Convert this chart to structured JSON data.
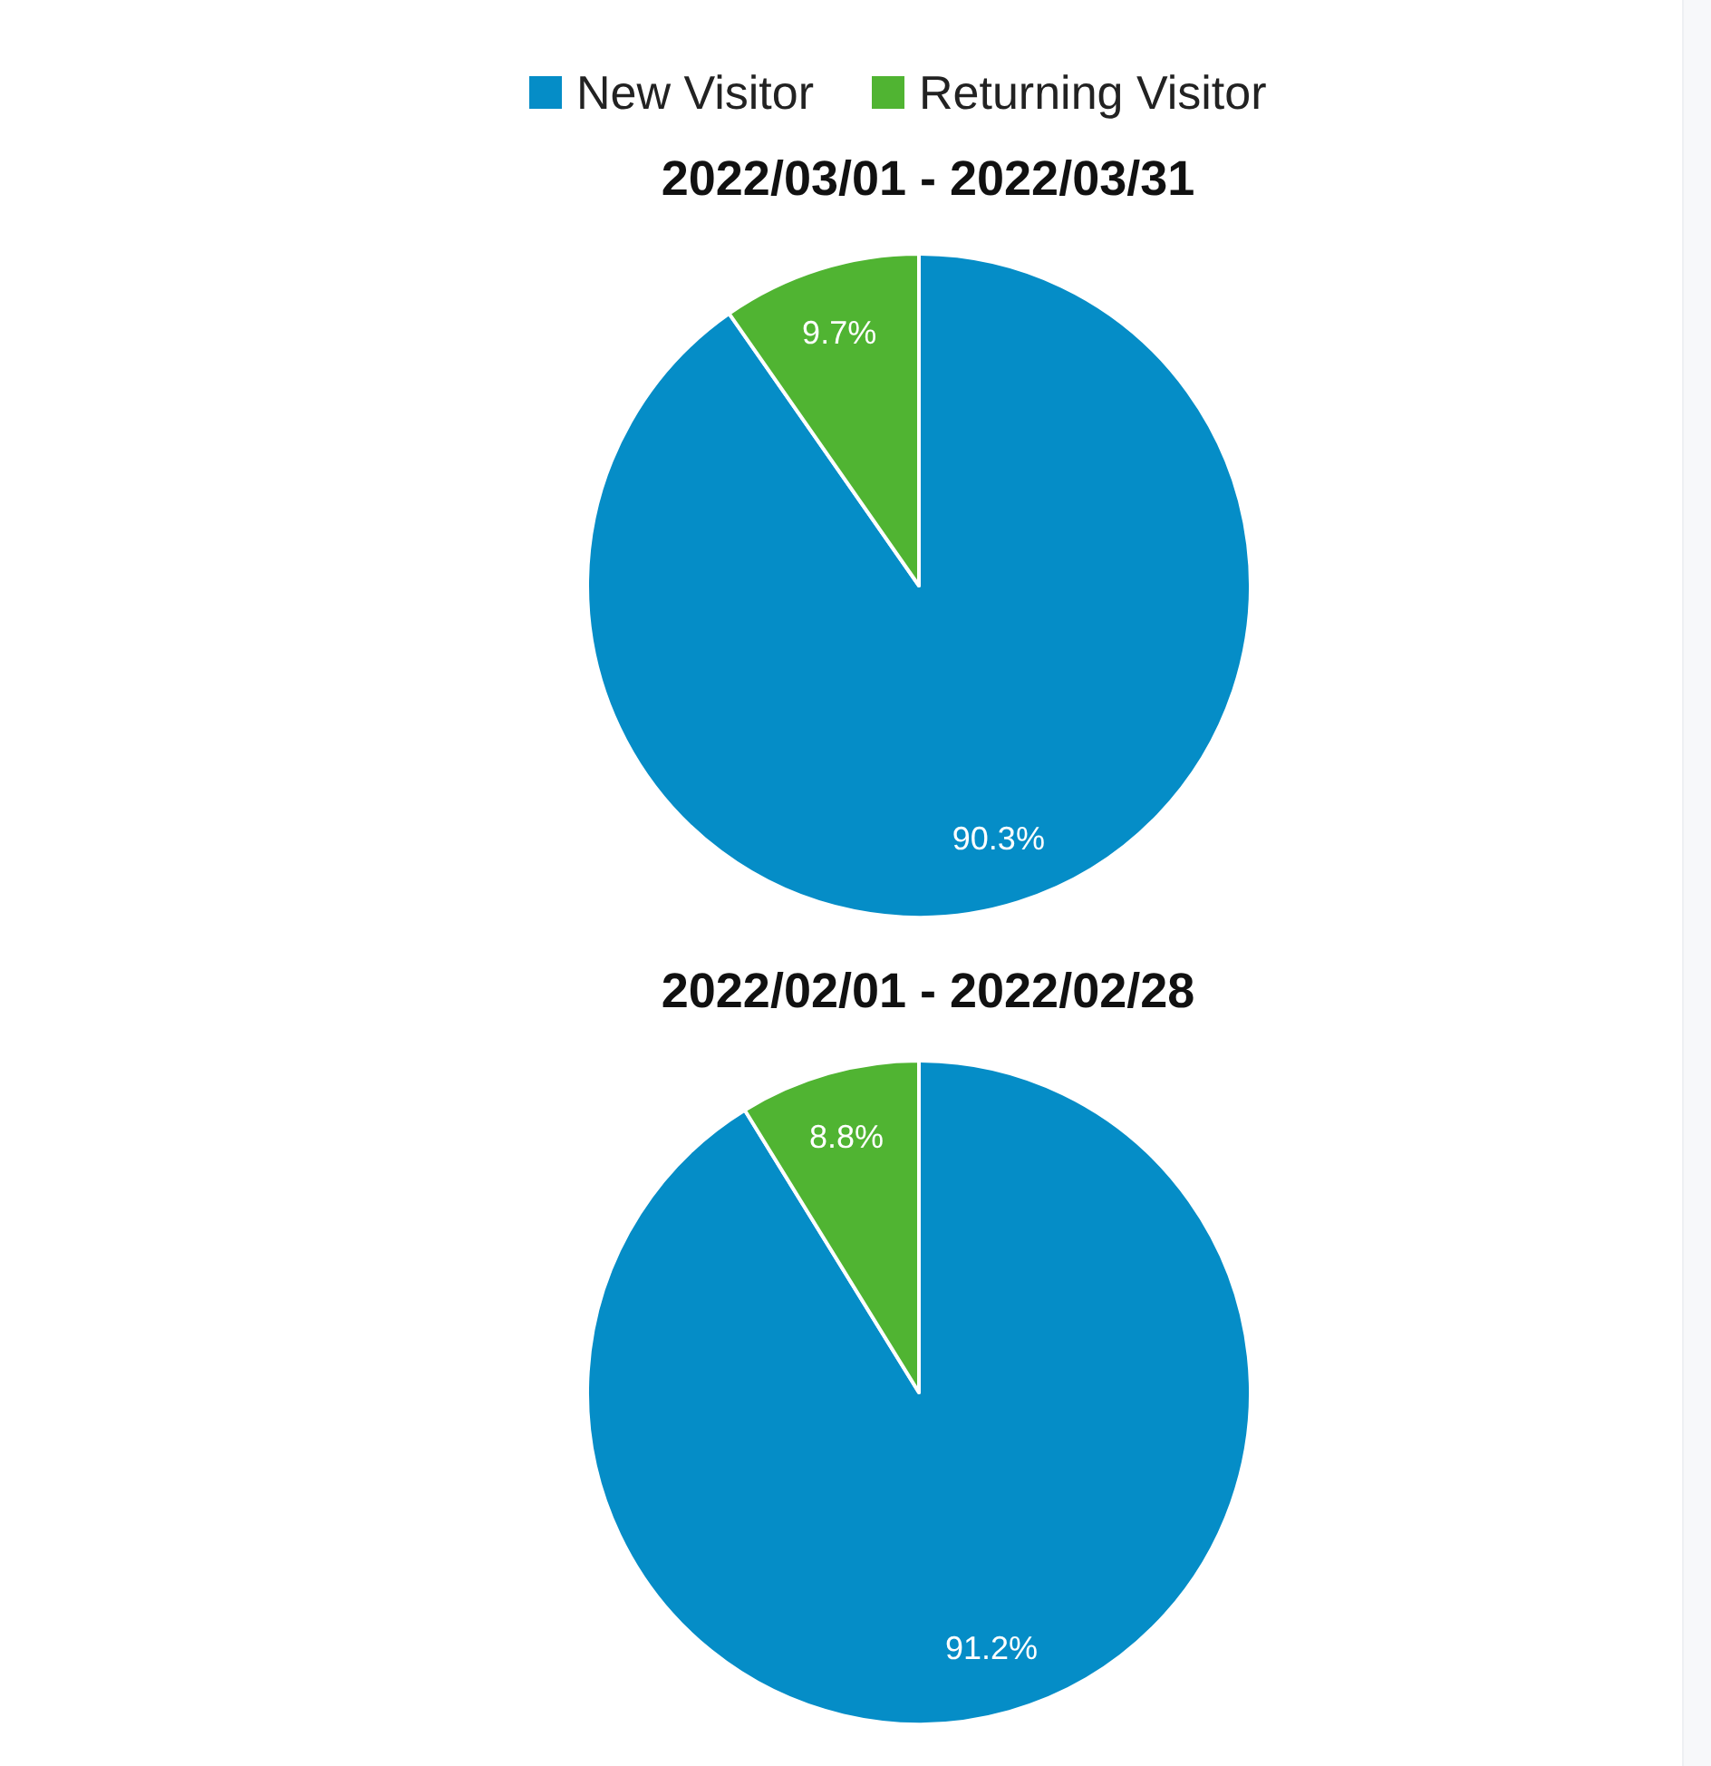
{
  "chart_data": [
    {
      "type": "pie",
      "title": "2022/03/01 - 2022/03/31",
      "categories": [
        "New Visitor",
        "Returning Visitor"
      ],
      "values": [
        90.3,
        9.7
      ],
      "colors": [
        "#058dc7",
        "#50b432"
      ],
      "value_labels": [
        "90.3%",
        "9.7%"
      ],
      "legend": "top"
    },
    {
      "type": "pie",
      "title": "2022/02/01 - 2022/02/28",
      "categories": [
        null,
        null
      ],
      "values": [
        91.2,
        8.8
      ],
      "colors": [
        "#058dc7",
        "#50b432"
      ],
      "value_labels": [
        "91.2%",
        "8.8%"
      ]
    }
  ]
}
